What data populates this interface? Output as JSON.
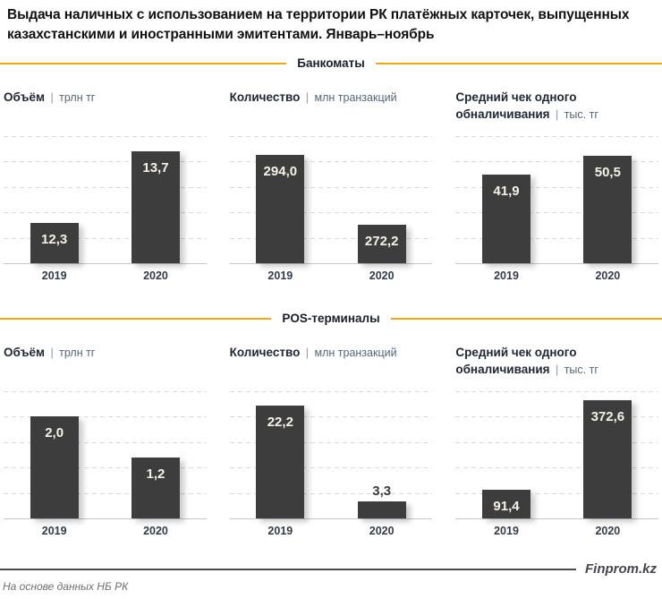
{
  "title": "Выдача наличных с использованием на территории РК платёжных карточек, выпущенных казахстанскими и иностранными эмитентами. Январь–ноябрь",
  "sections": [
    {
      "label": "Банкоматы"
    },
    {
      "label": "POS-терминалы"
    }
  ],
  "ui": {
    "unit_separator": "|",
    "colors": {
      "bar": "#3d3d3d",
      "accent_line": "#F2A711",
      "bar_label_light": "#f7f2e7",
      "bar_label_dark": "#3a3a3a",
      "grid": "#d7d9db"
    }
  },
  "chart_data": [
    {
      "type": "bar",
      "section": "Банкоматы",
      "title": "Объём",
      "unit": "трлн тг",
      "categories": [
        "2019",
        "2020"
      ],
      "values": [
        12.3,
        13.7
      ],
      "labels": [
        "12,3",
        "13,7"
      ],
      "ylim": [
        11.5,
        14
      ],
      "grid": "dashed-horizontal",
      "legend": "none"
    },
    {
      "type": "bar",
      "section": "Банкоматы",
      "title": "Количество",
      "unit": "млн транзакций",
      "categories": [
        "2019",
        "2020"
      ],
      "values": [
        294.0,
        272.2
      ],
      "labels": [
        "294,0",
        "272,2"
      ],
      "ylim": [
        260,
        300
      ],
      "grid": "dashed-horizontal",
      "legend": "none"
    },
    {
      "type": "bar",
      "section": "Банкоматы",
      "title": "Средний чек одного обналичивания",
      "unit": "тыс. тг",
      "categories": [
        "2019",
        "2020"
      ],
      "values": [
        41.9,
        50.5
      ],
      "labels": [
        "41,9",
        "50,5"
      ],
      "ylim": [
        0,
        60
      ],
      "grid": "dashed-horizontal",
      "legend": "none"
    },
    {
      "type": "bar",
      "section": "POS-терминалы",
      "title": "Объём",
      "unit": "трлн тг",
      "categories": [
        "2019",
        "2020"
      ],
      "values": [
        2.0,
        1.2
      ],
      "labels": [
        "2,0",
        "1,2"
      ],
      "ylim": [
        0,
        2.5
      ],
      "grid": "dashed-horizontal",
      "legend": "none"
    },
    {
      "type": "bar",
      "section": "POS-терминалы",
      "title": "Количество",
      "unit": "млн транзакций",
      "categories": [
        "2019",
        "2020"
      ],
      "values": [
        22.2,
        3.3
      ],
      "labels": [
        "22,2",
        "3,3"
      ],
      "ylim": [
        0,
        25
      ],
      "grid": "dashed-horizontal",
      "legend": "none"
    },
    {
      "type": "bar",
      "section": "POS-терминалы",
      "title": "Средний чек одного обналичивания",
      "unit": "тыс. тг",
      "categories": [
        "2019",
        "2020"
      ],
      "values": [
        91.4,
        372.6
      ],
      "labels": [
        "91,4",
        "372,6"
      ],
      "ylim": [
        0,
        400
      ],
      "grid": "dashed-horizontal",
      "legend": "none"
    }
  ],
  "footer": {
    "brand": "Finprom.kz",
    "source": "На основе данных НБ РК"
  }
}
